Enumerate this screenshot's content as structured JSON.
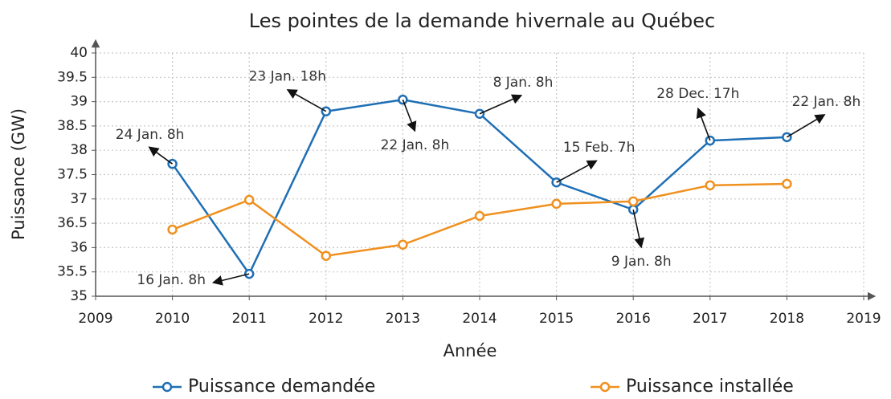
{
  "chart_data": {
    "type": "line",
    "title": "Les pointes de la demande hivernale au Québec",
    "xlabel": "Année",
    "ylabel": "Puissance (GW)",
    "x": [
      2010,
      2011,
      2012,
      2013,
      2014,
      2015,
      2016,
      2017,
      2018
    ],
    "series": [
      {
        "name": "Puissance demandée",
        "color": "#1f6fb5",
        "values": [
          37.72,
          35.46,
          38.8,
          39.04,
          38.75,
          37.34,
          36.78,
          38.2,
          38.27
        ]
      },
      {
        "name": "Puissance installée",
        "color": "#f0901e",
        "values": [
          36.37,
          36.98,
          35.83,
          36.06,
          36.65,
          36.9,
          36.95,
          37.28,
          37.31
        ]
      }
    ],
    "annotations": [
      "24 Jan. 8h",
      "16 Jan. 8h",
      "23 Jan. 18h",
      "22 Jan. 8h",
      "8 Jan. 8h",
      "15 Feb. 7h",
      "9 Jan. 8h",
      "28 Dec. 17h",
      "22 Jan. 8h"
    ],
    "xlim": [
      2009,
      2019
    ],
    "xticks": [
      2009,
      2010,
      2011,
      2012,
      2013,
      2014,
      2015,
      2016,
      2017,
      2018,
      2019
    ],
    "ylim": [
      35,
      40
    ],
    "yticks": [
      35,
      35.5,
      36,
      36.5,
      37,
      37.5,
      38,
      38.5,
      39,
      39.5,
      40
    ],
    "grid": true,
    "legend": "bottom"
  }
}
